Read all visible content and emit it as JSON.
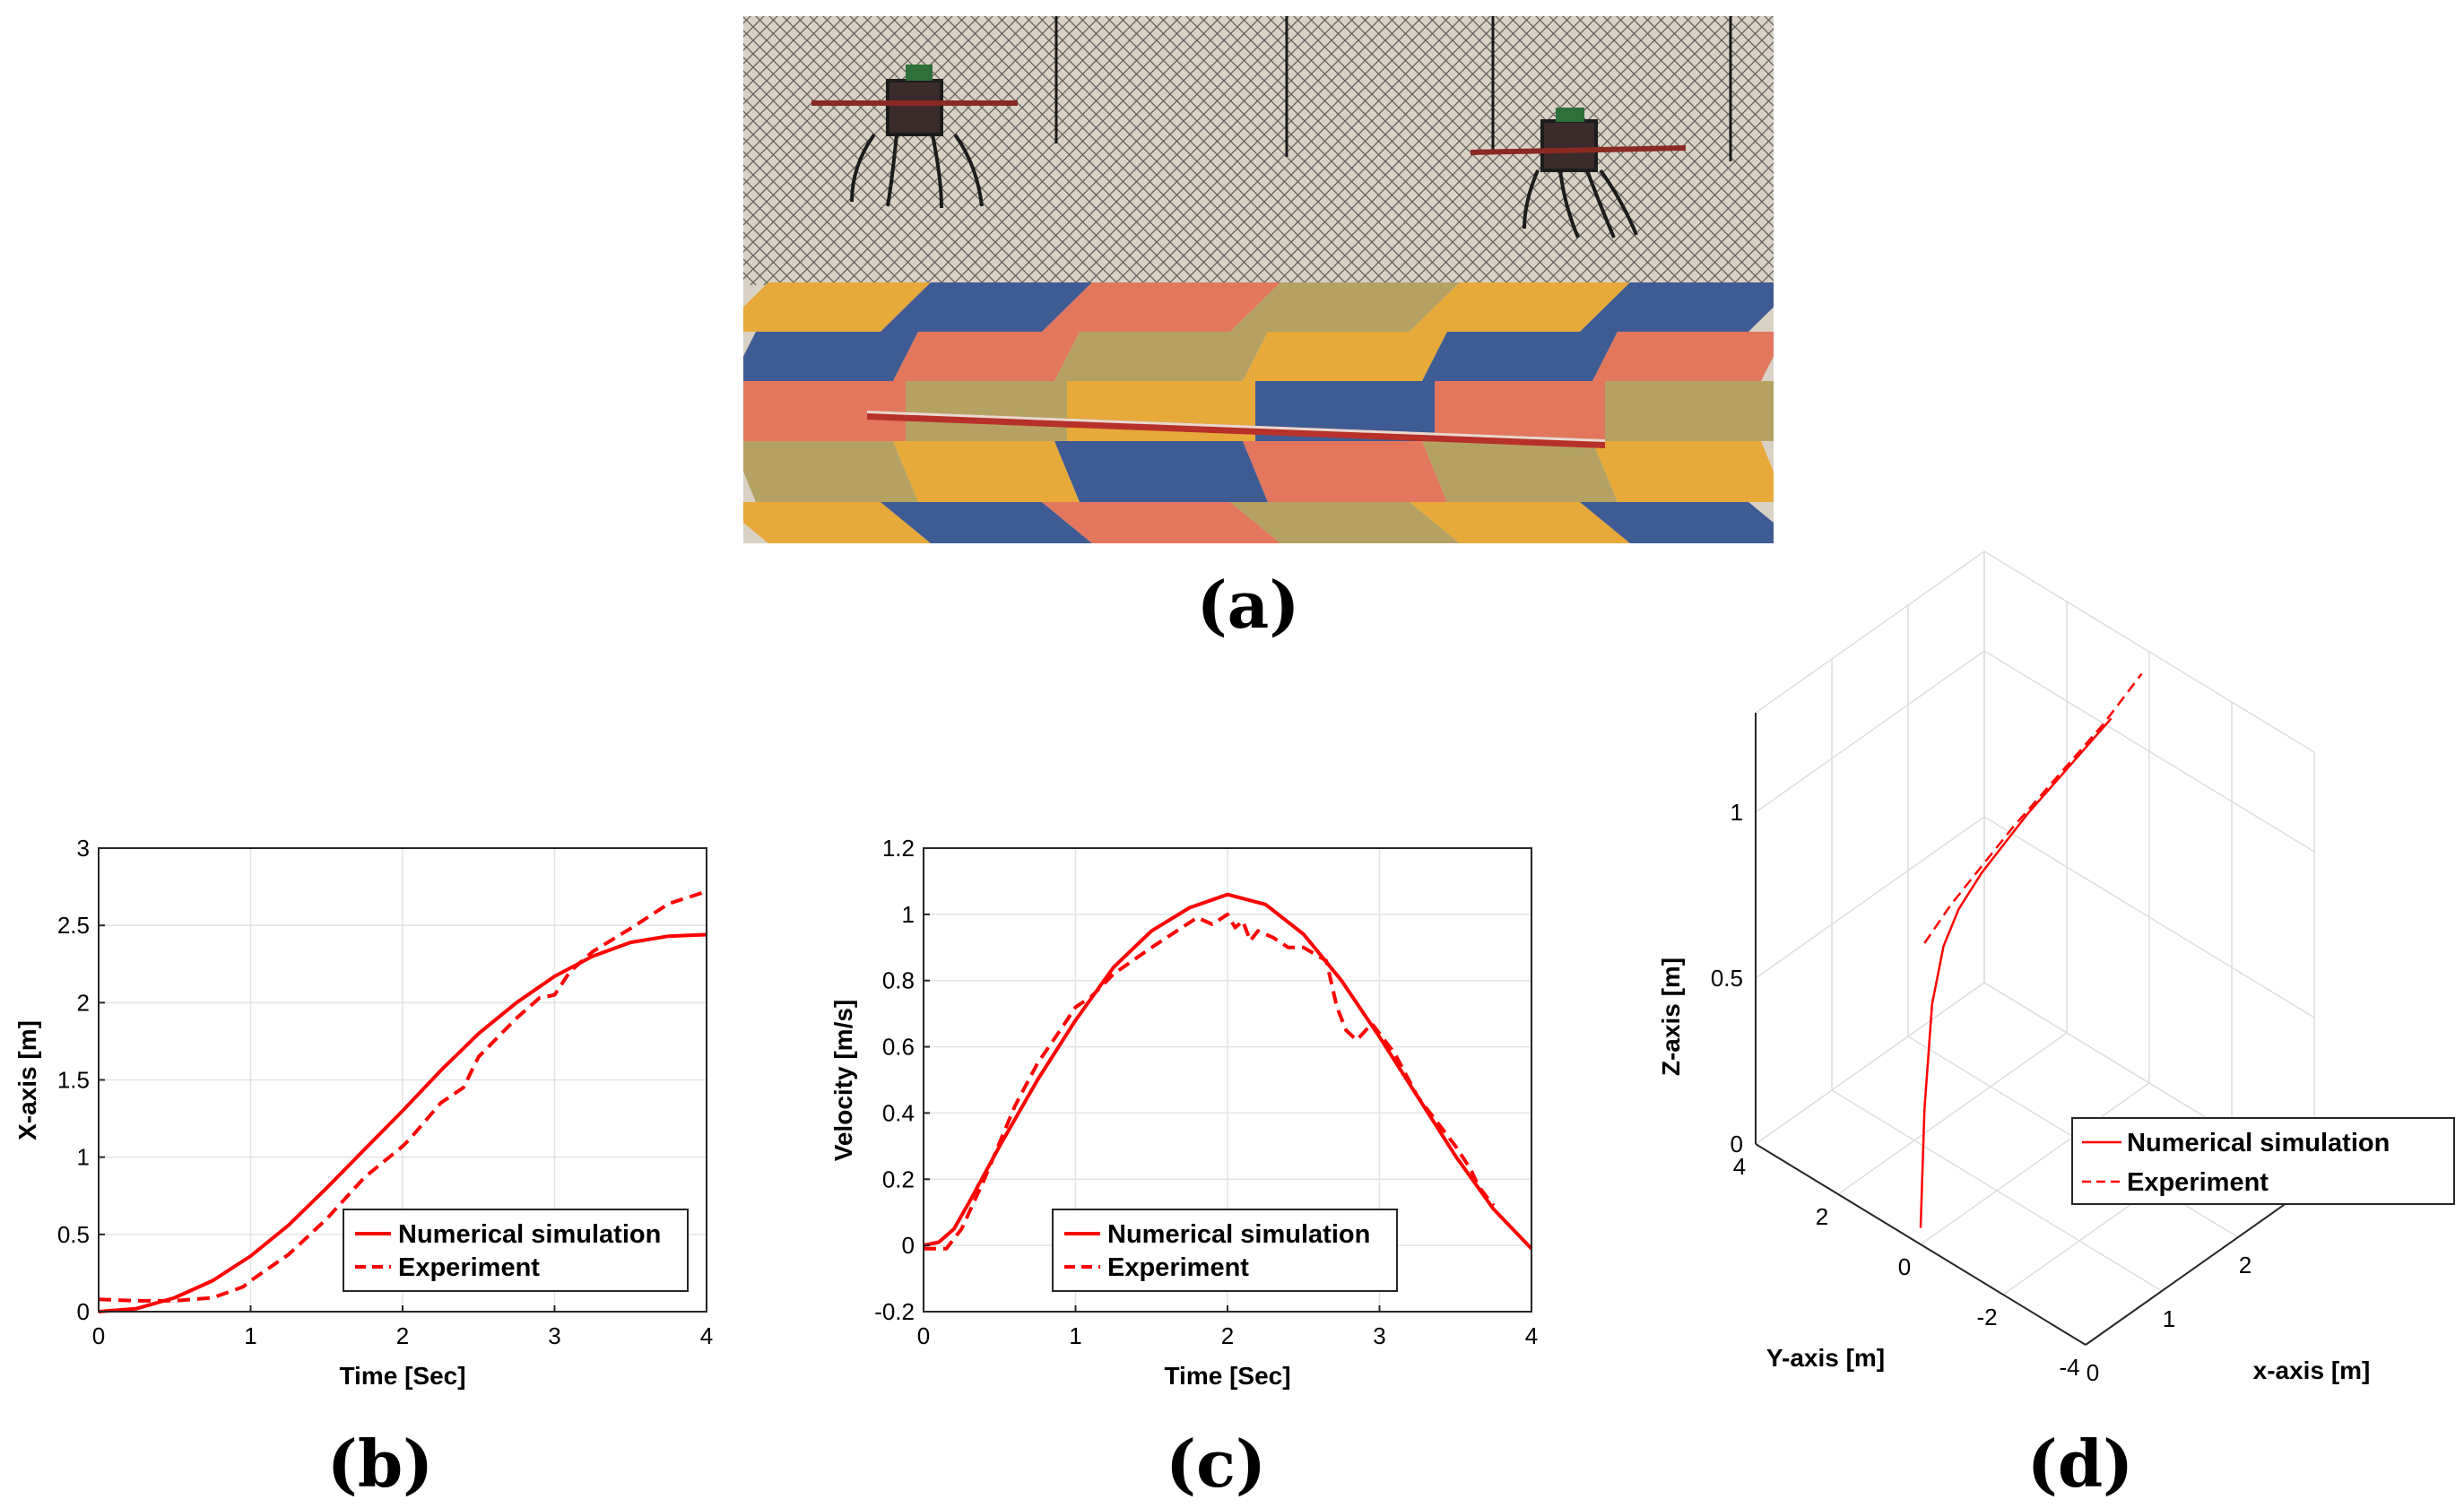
{
  "colors": {
    "series": "#ff0000",
    "net": "#2a2a2a",
    "wall": "#d8d0c4",
    "mat_yellow": "#e7a93a",
    "mat_blue": "#3f5b94",
    "mat_red": "#e3775e",
    "mat_olive": "#b5a263"
  },
  "panel_a": {
    "label": "(a)",
    "content": "photograph of two quadrotors carrying a bar inside a netted flight arena"
  },
  "chart_data": [
    {
      "id": "b",
      "type": "line",
      "panel_label": "(b)",
      "xlabel": "Time [Sec]",
      "ylabel": "X-axis [m]",
      "xlim": [
        0,
        4
      ],
      "ylim": [
        0,
        3
      ],
      "xticks": [
        "0",
        "1",
        "2",
        "3",
        "4"
      ],
      "yticks": [
        "0",
        "0.5",
        "1",
        "1.5",
        "2",
        "2.5",
        "3"
      ],
      "grid": true,
      "legend_position": "bottom-right",
      "series": [
        {
          "name": "Numerical simulation",
          "style": "solid",
          "x": [
            0,
            0.25,
            0.5,
            0.75,
            1.0,
            1.25,
            1.5,
            1.75,
            2.0,
            2.25,
            2.5,
            2.75,
            3.0,
            3.25,
            3.5,
            3.75,
            4.0
          ],
          "y": [
            0.0,
            0.02,
            0.09,
            0.2,
            0.36,
            0.56,
            0.8,
            1.05,
            1.3,
            1.56,
            1.8,
            2.0,
            2.17,
            2.3,
            2.39,
            2.43,
            2.44
          ]
        },
        {
          "name": "Experiment",
          "style": "dashed",
          "x": [
            0,
            0.25,
            0.5,
            0.75,
            0.95,
            1.0,
            1.25,
            1.5,
            1.75,
            2.0,
            2.05,
            2.25,
            2.4,
            2.5,
            2.75,
            2.9,
            3.0,
            3.1,
            3.25,
            3.5,
            3.75,
            4.0
          ],
          "y": [
            0.08,
            0.07,
            0.07,
            0.09,
            0.16,
            0.2,
            0.37,
            0.6,
            0.87,
            1.07,
            1.12,
            1.35,
            1.45,
            1.65,
            1.9,
            2.03,
            2.05,
            2.2,
            2.33,
            2.48,
            2.64,
            2.72
          ]
        }
      ]
    },
    {
      "id": "c",
      "type": "line",
      "panel_label": "(c)",
      "xlabel": "Time [Sec]",
      "ylabel": "Velocity [m/s]",
      "xlim": [
        0,
        4
      ],
      "ylim": [
        -0.2,
        1.2
      ],
      "xticks": [
        "0",
        "1",
        "2",
        "3",
        "4"
      ],
      "yticks": [
        "-0.2",
        "0",
        "0.2",
        "0.4",
        "0.6",
        "0.8",
        "1",
        "1.2"
      ],
      "grid": true,
      "legend_position": "bottom-center",
      "series": [
        {
          "name": "Numerical simulation",
          "style": "solid",
          "x": [
            0,
            0.1,
            0.2,
            0.3,
            0.5,
            0.75,
            1.0,
            1.25,
            1.5,
            1.75,
            2.0,
            2.25,
            2.5,
            2.75,
            3.0,
            3.25,
            3.5,
            3.75,
            4.0
          ],
          "y": [
            0.0,
            0.01,
            0.05,
            0.13,
            0.3,
            0.5,
            0.68,
            0.84,
            0.95,
            1.02,
            1.06,
            1.03,
            0.94,
            0.8,
            0.63,
            0.45,
            0.27,
            0.11,
            -0.01
          ]
        },
        {
          "name": "Experiment",
          "style": "dashed",
          "x": [
            0,
            0.15,
            0.25,
            0.4,
            0.6,
            0.75,
            0.9,
            1.0,
            1.1,
            1.25,
            1.5,
            1.7,
            1.8,
            1.9,
            2.0,
            2.05,
            2.1,
            2.15,
            2.2,
            2.3,
            2.4,
            2.5,
            2.65,
            2.72,
            2.78,
            2.85,
            2.95,
            3.1,
            3.25,
            3.5,
            3.6,
            3.65,
            3.75
          ],
          "y": [
            -0.01,
            -0.01,
            0.05,
            0.2,
            0.42,
            0.55,
            0.65,
            0.72,
            0.75,
            0.82,
            0.9,
            0.96,
            0.99,
            0.97,
            1.0,
            0.96,
            0.98,
            0.92,
            0.95,
            0.93,
            0.9,
            0.9,
            0.86,
            0.72,
            0.65,
            0.62,
            0.67,
            0.58,
            0.45,
            0.3,
            0.23,
            0.18,
            0.12
          ]
        }
      ]
    },
    {
      "id": "d",
      "type": "line",
      "panel_label": "(d)",
      "xlabel": "x-axis [m]",
      "ylabel": "Y-axis [m]",
      "zlabel": "Z-axis [m]",
      "xlim": [
        0,
        3
      ],
      "ylim": [
        -4,
        4
      ],
      "zlim": [
        0,
        1.3
      ],
      "xticks": [
        "0",
        "1",
        "2"
      ],
      "yticks": [
        "-4",
        "-2",
        "0",
        "2",
        "4"
      ],
      "zticks": [
        "0",
        "0.5",
        "1"
      ],
      "grid": true,
      "legend_position": "right",
      "series": [
        {
          "name": "Numerical simulation",
          "style": "solid",
          "x": [
            0.0,
            0.05,
            0.15,
            0.3,
            0.5,
            0.8,
            1.1,
            1.4,
            1.7,
            2.0,
            2.3,
            2.5
          ],
          "y": [
            0.0,
            0.0,
            0.0,
            0.0,
            0.0,
            0.0,
            0.0,
            0.0,
            0.0,
            0.0,
            0.0,
            0.0
          ],
          "z": [
            0.05,
            0.4,
            0.7,
            0.85,
            0.93,
            0.99,
            1.03,
            1.07,
            1.1,
            1.13,
            1.16,
            1.18
          ]
        },
        {
          "name": "Experiment",
          "style": "dashed",
          "x": [
            0.05,
            0.4,
            0.8,
            1.2,
            1.6,
            2.0,
            2.4,
            2.9
          ],
          "y": [
            0.0,
            0.0,
            0.0,
            0.0,
            0.0,
            0.0,
            0.0,
            0.0
          ],
          "z": [
            0.9,
            0.96,
            1.01,
            1.06,
            1.1,
            1.14,
            1.18,
            1.25
          ]
        }
      ]
    }
  ]
}
